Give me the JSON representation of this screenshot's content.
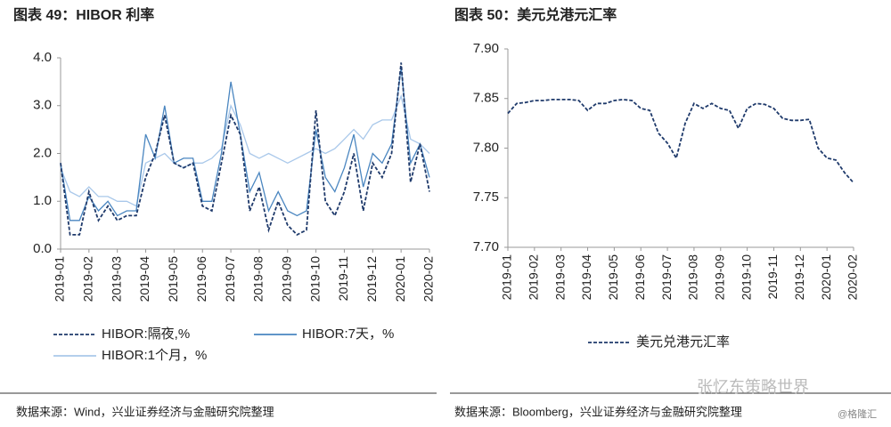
{
  "chart_data": [
    {
      "type": "line",
      "title": "图表 49：HIBOR 利率",
      "source": "数据来源：Wind，兴业证券经济与金融研究院整理",
      "categories": [
        "2019-01",
        null,
        null,
        "2019-02",
        null,
        null,
        "2019-03",
        null,
        null,
        "2019-04",
        null,
        null,
        "2019-05",
        null,
        null,
        "2019-06",
        null,
        null,
        "2019-07",
        null,
        null,
        "2019-08",
        null,
        null,
        "2019-09",
        null,
        null,
        "2019-10",
        null,
        null,
        "2019-11",
        null,
        null,
        "2019-12",
        null,
        null,
        "2020-01",
        null,
        null,
        "2020-02"
      ],
      "ylim": [
        0,
        4
      ],
      "yticks": [
        {
          "value": 0,
          "label": "0.0"
        },
        {
          "value": 1,
          "label": "1.0"
        },
        {
          "value": 2,
          "label": "2.0"
        },
        {
          "value": 3,
          "label": "3.0"
        },
        {
          "value": 4,
          "label": "4.0"
        }
      ],
      "grid": false,
      "series": [
        {
          "name": "HIBOR:隔夜,%",
          "color": "#1f3a6b",
          "dashed": true,
          "values": [
            1.8,
            0.3,
            0.3,
            1.2,
            0.6,
            0.9,
            0.6,
            0.7,
            0.7,
            1.5,
            2.0,
            2.8,
            1.8,
            1.7,
            1.8,
            0.9,
            0.8,
            1.8,
            2.8,
            2.4,
            0.8,
            1.3,
            0.4,
            1.0,
            0.5,
            0.3,
            0.4,
            2.9,
            1.0,
            0.7,
            1.2,
            2.0,
            0.8,
            1.8,
            1.5,
            2.0,
            3.9,
            1.4,
            2.2,
            1.2
          ]
        },
        {
          "name": "HIBOR:7天，%",
          "color": "#4a86c0",
          "dashed": false,
          "values": [
            1.8,
            0.6,
            0.6,
            1.1,
            0.8,
            1.0,
            0.7,
            0.8,
            0.8,
            2.4,
            1.9,
            3.0,
            1.8,
            1.9,
            1.9,
            1.0,
            1.0,
            2.0,
            3.5,
            2.4,
            1.2,
            1.6,
            0.8,
            1.2,
            0.8,
            0.7,
            0.8,
            2.5,
            1.5,
            1.2,
            1.7,
            2.4,
            1.3,
            2.0,
            1.8,
            2.2,
            3.8,
            1.8,
            2.2,
            1.5
          ]
        },
        {
          "name": "HIBOR:1个月，%",
          "color": "#a9c8ea",
          "dashed": false,
          "values": [
            1.7,
            1.2,
            1.1,
            1.3,
            1.1,
            1.1,
            1.0,
            1.0,
            0.9,
            1.8,
            1.9,
            2.0,
            1.8,
            1.7,
            1.8,
            1.8,
            1.9,
            2.1,
            3.0,
            2.6,
            2.0,
            1.9,
            2.0,
            1.9,
            1.8,
            1.9,
            2.0,
            2.1,
            2.0,
            2.1,
            2.3,
            2.5,
            2.3,
            2.6,
            2.7,
            2.7,
            3.2,
            2.3,
            2.2,
            2.0
          ]
        }
      ]
    },
    {
      "type": "line",
      "title": "图表 50：美元兑港元汇率",
      "source": "数据来源：Bloomberg，兴业证券经济与金融研究院整理",
      "categories": [
        "2019-01",
        null,
        null,
        "2019-02",
        null,
        null,
        "2019-03",
        null,
        null,
        "2019-04",
        null,
        null,
        "2019-05",
        null,
        null,
        "2019-06",
        null,
        null,
        "2019-07",
        null,
        null,
        "2019-08",
        null,
        null,
        "2019-09",
        null,
        null,
        "2019-10",
        null,
        null,
        "2019-11",
        null,
        null,
        "2019-12",
        null,
        null,
        "2020-01",
        null,
        null,
        "2020-02"
      ],
      "ylim": [
        7.7,
        7.9
      ],
      "yticks": [
        {
          "value": 7.7,
          "label": "7.70"
        },
        {
          "value": 7.75,
          "label": "7.75"
        },
        {
          "value": 7.8,
          "label": "7.80"
        },
        {
          "value": 7.85,
          "label": "7.85"
        },
        {
          "value": 7.9,
          "label": "7.90"
        }
      ],
      "grid": false,
      "series": [
        {
          "name": "美元兑港元汇率",
          "color": "#1f3a6b",
          "dashed": true,
          "values": [
            7.835,
            7.845,
            7.846,
            7.848,
            7.848,
            7.849,
            7.849,
            7.849,
            7.848,
            7.838,
            7.845,
            7.845,
            7.848,
            7.849,
            7.848,
            7.84,
            7.838,
            7.815,
            7.805,
            7.79,
            7.825,
            7.845,
            7.84,
            7.845,
            7.84,
            7.838,
            7.82,
            7.84,
            7.845,
            7.844,
            7.84,
            7.83,
            7.828,
            7.828,
            7.829,
            7.8,
            7.79,
            7.788,
            7.775,
            7.765
          ]
        }
      ]
    }
  ],
  "watermark": [
    "张忆东策略世界",
    "@格隆汇"
  ]
}
